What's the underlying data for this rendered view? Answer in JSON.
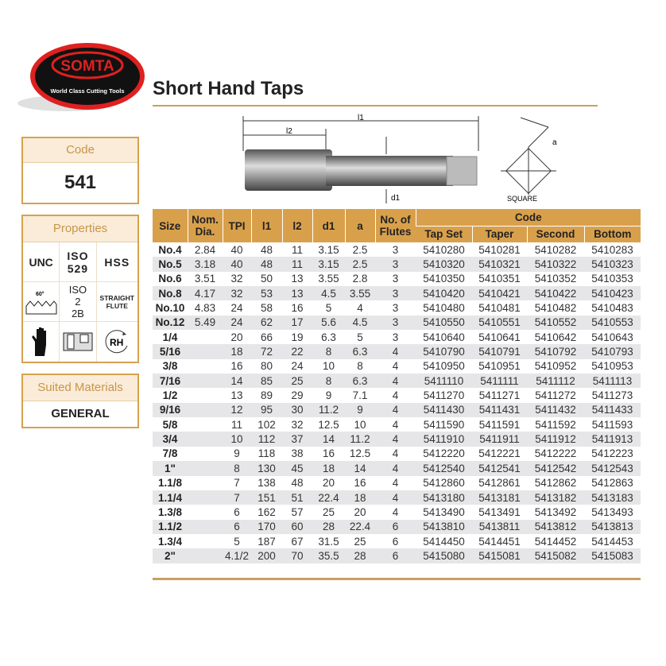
{
  "logo": {
    "brand": "SOMTA",
    "tagline": "World Class Cutting Tools"
  },
  "title": "Short Hand Taps",
  "diagram": {
    "l1": "l1",
    "l2": "l2",
    "d1": "d1",
    "a": "a",
    "square": "SQUARE"
  },
  "code_box": {
    "label": "Code",
    "value": "541"
  },
  "properties": {
    "label": "Properties",
    "items": [
      "UNC",
      "ISO 529",
      "HSS",
      "60°",
      "ISO 2 2B",
      "STRAIGHT FLUTE",
      "glove-icon",
      "tap-holder-icon",
      "RH"
    ]
  },
  "suited": {
    "label": "Suited Materials",
    "value": "GENERAL"
  },
  "table": {
    "headers": {
      "size": "Size",
      "nom": "Nom. Dia.",
      "tpi": "TPI",
      "l1": "l1",
      "l2": "l2",
      "d1": "d1",
      "a": "a",
      "flutes": "No. of Flutes",
      "code": "Code",
      "tapset": "Tap Set",
      "taper": "Taper",
      "second": "Second",
      "bottom": "Bottom"
    },
    "rows": [
      [
        "No.4",
        "2.84",
        "40",
        "48",
        "11",
        "3.15",
        "2.5",
        "3",
        "5410280",
        "5410281",
        "5410282",
        "5410283"
      ],
      [
        "No.5",
        "3.18",
        "40",
        "48",
        "11",
        "3.15",
        "2.5",
        "3",
        "5410320",
        "5410321",
        "5410322",
        "5410323"
      ],
      [
        "No.6",
        "3.51",
        "32",
        "50",
        "13",
        "3.55",
        "2.8",
        "3",
        "5410350",
        "5410351",
        "5410352",
        "5410353"
      ],
      [
        "No.8",
        "4.17",
        "32",
        "53",
        "13",
        "4.5",
        "3.55",
        "3",
        "5410420",
        "5410421",
        "5410422",
        "5410423"
      ],
      [
        "No.10",
        "4.83",
        "24",
        "58",
        "16",
        "5",
        "4",
        "3",
        "5410480",
        "5410481",
        "5410482",
        "5410483"
      ],
      [
        "No.12",
        "5.49",
        "24",
        "62",
        "17",
        "5.6",
        "4.5",
        "3",
        "5410550",
        "5410551",
        "5410552",
        "5410553"
      ],
      [
        "1/4",
        "",
        "20",
        "66",
        "19",
        "6.3",
        "5",
        "3",
        "5410640",
        "5410641",
        "5410642",
        "5410643"
      ],
      [
        "5/16",
        "",
        "18",
        "72",
        "22",
        "8",
        "6.3",
        "4",
        "5410790",
        "5410791",
        "5410792",
        "5410793"
      ],
      [
        "3/8",
        "",
        "16",
        "80",
        "24",
        "10",
        "8",
        "4",
        "5410950",
        "5410951",
        "5410952",
        "5410953"
      ],
      [
        "7/16",
        "",
        "14",
        "85",
        "25",
        "8",
        "6.3",
        "4",
        "5411110",
        "5411111",
        "5411112",
        "5411113"
      ],
      [
        "1/2",
        "",
        "13",
        "89",
        "29",
        "9",
        "7.1",
        "4",
        "5411270",
        "5411271",
        "5411272",
        "5411273"
      ],
      [
        "9/16",
        "",
        "12",
        "95",
        "30",
        "11.2",
        "9",
        "4",
        "5411430",
        "5411431",
        "5411432",
        "5411433"
      ],
      [
        "5/8",
        "",
        "11",
        "102",
        "32",
        "12.5",
        "10",
        "4",
        "5411590",
        "5411591",
        "5411592",
        "5411593"
      ],
      [
        "3/4",
        "",
        "10",
        "112",
        "37",
        "14",
        "11.2",
        "4",
        "5411910",
        "5411911",
        "5411912",
        "5411913"
      ],
      [
        "7/8",
        "",
        "9",
        "118",
        "38",
        "16",
        "12.5",
        "4",
        "5412220",
        "5412221",
        "5412222",
        "5412223"
      ],
      [
        "1\"",
        "",
        "8",
        "130",
        "45",
        "18",
        "14",
        "4",
        "5412540",
        "5412541",
        "5412542",
        "5412543"
      ],
      [
        "1.1/8",
        "",
        "7",
        "138",
        "48",
        "20",
        "16",
        "4",
        "5412860",
        "5412861",
        "5412862",
        "5412863"
      ],
      [
        "1.1/4",
        "",
        "7",
        "151",
        "51",
        "22.4",
        "18",
        "4",
        "5413180",
        "5413181",
        "5413182",
        "5413183"
      ],
      [
        "1.3/8",
        "",
        "6",
        "162",
        "57",
        "25",
        "20",
        "4",
        "5413490",
        "5413491",
        "5413492",
        "5413493"
      ],
      [
        "1.1/2",
        "",
        "6",
        "170",
        "60",
        "28",
        "22.4",
        "6",
        "5413810",
        "5413811",
        "5413812",
        "5413813"
      ],
      [
        "1.3/4",
        "",
        "5",
        "187",
        "67",
        "31.5",
        "25",
        "6",
        "5414450",
        "5414451",
        "5414452",
        "5414453"
      ],
      [
        "2\"",
        "",
        "4.1/2",
        "200",
        "70",
        "35.5",
        "28",
        "6",
        "5415080",
        "5415081",
        "5415082",
        "5415083"
      ]
    ]
  },
  "colors": {
    "accent": "#d9a04b",
    "logo_red": "#e02020",
    "stripe": "#e6e6e8"
  }
}
